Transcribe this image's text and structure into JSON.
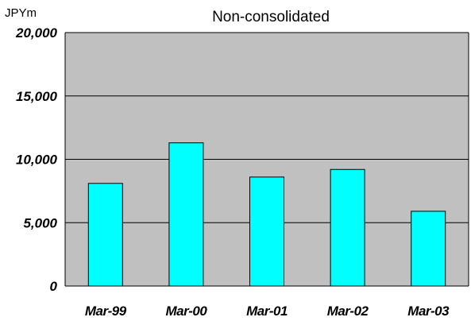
{
  "chart_data": {
    "type": "bar",
    "title": "Non-consolidated",
    "unit_label": "JPYm",
    "xlabel": "",
    "ylabel": "",
    "categories": [
      "Mar-99",
      "Mar-00",
      "Mar-01",
      "Mar-02",
      "Mar-03"
    ],
    "values": [
      8100,
      11300,
      8600,
      9200,
      5900
    ],
    "ylim": [
      0,
      20000
    ],
    "yticks": [
      0,
      5000,
      10000,
      15000,
      20000
    ],
    "ytick_labels": [
      "0",
      "5,000",
      "10,000",
      "15,000",
      "20,000"
    ],
    "grid": true,
    "legend": "none",
    "colors": {
      "bar_fill": "#00FFFF",
      "bar_stroke": "#000000",
      "plot_background": "#C0C0C0",
      "gridline": "#000000"
    }
  }
}
